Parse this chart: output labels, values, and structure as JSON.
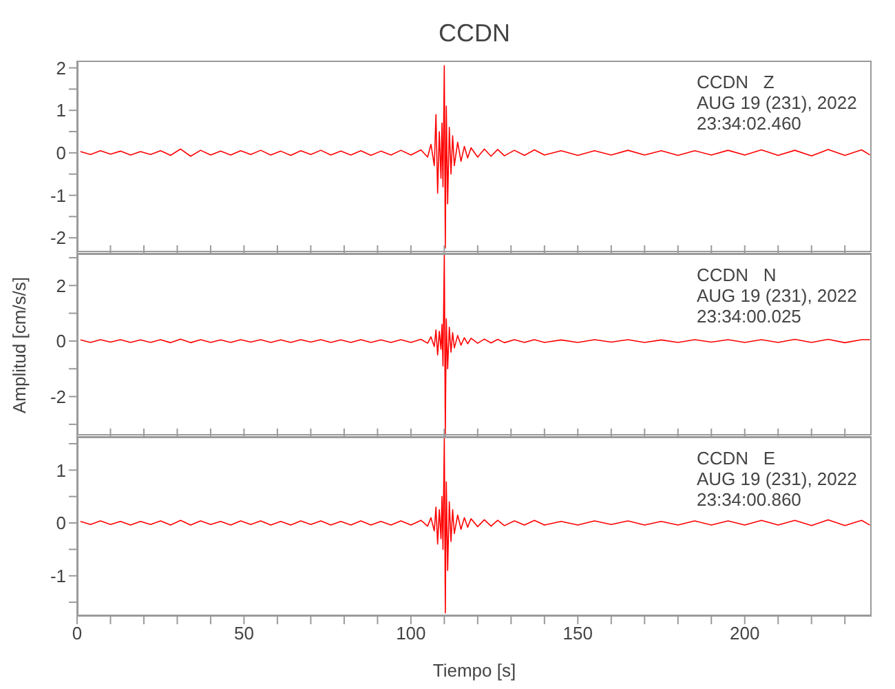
{
  "chart_data": [
    {
      "type": "line",
      "title": "CCDN",
      "annotations": [
        "CCDN   Z",
        "AUG 19 (231), 2022",
        "23:34:02.460"
      ],
      "tick_labels": "y",
      "xlim": [
        0,
        238
      ],
      "xticks": [
        0,
        {
          "value": 10,
          "label": null
        },
        {
          "value": 20,
          "label": null
        },
        {
          "value": 30,
          "label": null
        },
        {
          "value": 40,
          "label": null
        },
        {
          "value": 50,
          "label": null
        },
        {
          "value": 60,
          "label": null
        },
        {
          "value": 70,
          "label": null
        },
        {
          "value": 80,
          "label": null
        },
        {
          "value": 90,
          "label": null
        },
        {
          "value": 100,
          "label": null
        },
        {
          "value": 110,
          "label": null
        },
        {
          "value": 120,
          "label": null
        },
        {
          "value": 130,
          "label": null
        },
        {
          "value": 140,
          "label": null
        },
        {
          "value": 150,
          "label": null
        },
        {
          "value": 160,
          "label": null
        },
        {
          "value": 170,
          "label": null
        },
        {
          "value": 180,
          "label": null
        },
        {
          "value": 190,
          "label": null
        },
        {
          "value": 200,
          "label": null
        },
        {
          "value": 210,
          "label": null
        },
        {
          "value": 220,
          "label": null
        },
        {
          "value": 230,
          "label": null
        }
      ],
      "ylim": [
        -2.37,
        2.17
      ],
      "yticks": [
        -2,
        {
          "value": -1.5,
          "label": null
        },
        -1,
        {
          "value": -0.5,
          "label": null
        },
        0,
        {
          "value": 0.5,
          "label": null
        },
        1,
        {
          "value": 1.5,
          "label": null
        },
        2
      ],
      "x": [
        1,
        4,
        7,
        10,
        13,
        16,
        19,
        22,
        25,
        28,
        31,
        34,
        37,
        40,
        43,
        46,
        49,
        52,
        55,
        58,
        61,
        64,
        67,
        70,
        73,
        76,
        79,
        82,
        85,
        88,
        91,
        94,
        97,
        100,
        103,
        105,
        106,
        107,
        107.5,
        108,
        108.5,
        109,
        109.3,
        109.6,
        110,
        110.3,
        110.6,
        111,
        111.5,
        112,
        112.5,
        113,
        114,
        115,
        116,
        117,
        118,
        120,
        122,
        124,
        126,
        128,
        131,
        134,
        137,
        140,
        145,
        150,
        155,
        160,
        165,
        170,
        175,
        180,
        185,
        190,
        195,
        200,
        205,
        210,
        215,
        220,
        225,
        230,
        235,
        237.5
      ],
      "series": [
        {
          "color": "#ff0000",
          "values": [
            0.03,
            -0.04,
            0.05,
            -0.03,
            0.04,
            -0.05,
            0.03,
            -0.04,
            0.05,
            -0.06,
            0.09,
            -0.08,
            0.06,
            -0.05,
            0.04,
            -0.05,
            0.05,
            -0.04,
            0.06,
            -0.05,
            0.04,
            -0.06,
            0.05,
            -0.04,
            0.06,
            -0.05,
            0.04,
            -0.05,
            0.05,
            -0.06,
            0.04,
            -0.05,
            0.06,
            -0.05,
            0.07,
            -0.1,
            0.2,
            -0.3,
            0.9,
            -0.95,
            0.5,
            -0.6,
            0.7,
            -0.8,
            2.05,
            -2.24,
            1.1,
            -1.2,
            0.6,
            -0.5,
            0.4,
            -0.3,
            0.25,
            -0.2,
            0.15,
            -0.12,
            0.12,
            -0.1,
            0.09,
            -0.08,
            0.08,
            -0.07,
            0.06,
            -0.06,
            0.07,
            -0.05,
            0.05,
            -0.06,
            0.05,
            -0.05,
            0.06,
            -0.05,
            0.05,
            -0.06,
            0.05,
            -0.05,
            0.06,
            -0.05,
            0.07,
            -0.06,
            0.06,
            -0.07,
            0.08,
            -0.06,
            0.07,
            -0.05
          ]
        }
      ]
    },
    {
      "type": "line",
      "ylabel": "Amplitud [cm/s/s]",
      "annotations": [
        "CCDN   N",
        "AUG 19 (231), 2022",
        "23:34:00.025"
      ],
      "tick_labels": "y",
      "xlim": [
        0,
        238
      ],
      "xticks": [
        0,
        {
          "value": 10,
          "label": null
        },
        {
          "value": 20,
          "label": null
        },
        {
          "value": 30,
          "label": null
        },
        {
          "value": 40,
          "label": null
        },
        {
          "value": 50,
          "label": null
        },
        {
          "value": 60,
          "label": null
        },
        {
          "value": 70,
          "label": null
        },
        {
          "value": 80,
          "label": null
        },
        {
          "value": 90,
          "label": null
        },
        {
          "value": 100,
          "label": null
        },
        {
          "value": 110,
          "label": null
        },
        {
          "value": 120,
          "label": null
        },
        {
          "value": 130,
          "label": null
        },
        {
          "value": 140,
          "label": null
        },
        {
          "value": 150,
          "label": null
        },
        {
          "value": 160,
          "label": null
        },
        {
          "value": 170,
          "label": null
        },
        {
          "value": 180,
          "label": null
        },
        {
          "value": 190,
          "label": null
        },
        {
          "value": 200,
          "label": null
        },
        {
          "value": 210,
          "label": null
        },
        {
          "value": 220,
          "label": null
        },
        {
          "value": 230,
          "label": null
        }
      ],
      "ylim": [
        -3.45,
        3.15
      ],
      "yticks": [
        {
          "value": -3,
          "label": null
        },
        -2,
        {
          "value": -1,
          "label": null
        },
        0,
        {
          "value": 1,
          "label": null
        },
        2,
        {
          "value": 3,
          "label": null
        }
      ],
      "x": [
        1,
        4,
        7,
        10,
        13,
        16,
        19,
        22,
        25,
        28,
        31,
        34,
        37,
        40,
        43,
        46,
        49,
        52,
        55,
        58,
        61,
        64,
        67,
        70,
        73,
        76,
        79,
        82,
        85,
        88,
        91,
        94,
        97,
        100,
        103,
        105,
        106,
        107,
        107.5,
        108,
        108.5,
        109,
        109.3,
        109.6,
        110,
        110.3,
        110.6,
        111,
        111.5,
        112,
        112.5,
        113,
        114,
        115,
        116,
        117,
        118,
        120,
        122,
        124,
        126,
        128,
        131,
        134,
        137,
        140,
        145,
        150,
        155,
        160,
        165,
        170,
        175,
        180,
        185,
        190,
        195,
        200,
        205,
        210,
        215,
        220,
        225,
        230,
        235,
        237.5
      ],
      "series": [
        {
          "color": "#ff0000",
          "values": [
            0.04,
            -0.05,
            0.05,
            -0.04,
            0.05,
            -0.05,
            0.04,
            -0.05,
            0.05,
            -0.06,
            0.07,
            -0.06,
            0.05,
            -0.05,
            0.04,
            -0.05,
            0.05,
            -0.04,
            0.05,
            -0.05,
            0.04,
            -0.05,
            0.05,
            -0.04,
            0.05,
            -0.05,
            0.04,
            -0.05,
            0.05,
            -0.05,
            0.04,
            -0.05,
            0.05,
            -0.05,
            0.06,
            -0.08,
            0.15,
            -0.2,
            0.4,
            -0.5,
            0.35,
            -0.3,
            0.6,
            -0.9,
            3.1,
            -3.4,
            0.8,
            -1.0,
            0.5,
            -0.4,
            0.3,
            -0.25,
            0.2,
            -0.15,
            0.12,
            -0.1,
            0.1,
            -0.08,
            0.07,
            -0.07,
            0.06,
            -0.06,
            0.05,
            -0.05,
            0.05,
            -0.05,
            0.04,
            -0.05,
            0.05,
            -0.04,
            0.05,
            -0.05,
            0.04,
            -0.05,
            0.05,
            -0.04,
            0.05,
            -0.05,
            0.05,
            -0.05,
            0.06,
            -0.05,
            0.06,
            -0.06,
            0.05,
            0.05
          ]
        }
      ]
    },
    {
      "type": "line",
      "xlabel": "Tiempo [s]",
      "annotations": [
        "CCDN   E",
        "AUG 19 (231), 2022",
        "23:34:00.860"
      ],
      "xlim": [
        0,
        238
      ],
      "xticks": [
        0,
        {
          "value": 10,
          "label": null
        },
        {
          "value": 20,
          "label": null
        },
        {
          "value": 30,
          "label": null
        },
        {
          "value": 40,
          "label": null
        },
        50,
        {
          "value": 60,
          "label": null
        },
        {
          "value": 70,
          "label": null
        },
        {
          "value": 80,
          "label": null
        },
        {
          "value": 90,
          "label": null
        },
        100,
        {
          "value": 110,
          "label": null
        },
        {
          "value": 120,
          "label": null
        },
        {
          "value": 130,
          "label": null
        },
        {
          "value": 140,
          "label": null
        },
        150,
        {
          "value": 160,
          "label": null
        },
        {
          "value": 170,
          "label": null
        },
        {
          "value": 180,
          "label": null
        },
        {
          "value": 190,
          "label": null
        },
        200,
        {
          "value": 210,
          "label": null
        },
        {
          "value": 220,
          "label": null
        },
        {
          "value": 230,
          "label": null
        }
      ],
      "ylim": [
        -1.76,
        1.63
      ],
      "yticks": [
        {
          "value": -1.5,
          "label": null
        },
        -1,
        {
          "value": -0.5,
          "label": null
        },
        0,
        {
          "value": 0.5,
          "label": null
        },
        1,
        {
          "value": 1.5,
          "label": null
        }
      ],
      "x": [
        1,
        4,
        7,
        10,
        13,
        16,
        19,
        22,
        25,
        28,
        31,
        34,
        37,
        40,
        43,
        46,
        49,
        52,
        55,
        58,
        61,
        64,
        67,
        70,
        73,
        76,
        79,
        82,
        85,
        88,
        91,
        94,
        97,
        100,
        103,
        105,
        106,
        107,
        107.5,
        108,
        108.5,
        109,
        109.3,
        109.6,
        110,
        110.3,
        110.6,
        111,
        111.5,
        112,
        112.5,
        113,
        114,
        115,
        116,
        117,
        118,
        120,
        122,
        124,
        126,
        128,
        131,
        134,
        137,
        140,
        145,
        150,
        155,
        160,
        165,
        170,
        175,
        180,
        185,
        190,
        195,
        200,
        205,
        210,
        215,
        220,
        225,
        230,
        235,
        237.5
      ],
      "series": [
        {
          "color": "#ff0000",
          "values": [
            0.03,
            -0.03,
            0.04,
            -0.03,
            0.03,
            -0.04,
            0.03,
            -0.03,
            0.04,
            -0.04,
            0.05,
            -0.04,
            0.04,
            -0.03,
            0.03,
            -0.04,
            0.04,
            -0.03,
            0.04,
            -0.04,
            0.03,
            -0.04,
            0.04,
            -0.03,
            0.04,
            -0.04,
            0.03,
            -0.04,
            0.04,
            -0.04,
            0.03,
            -0.04,
            0.04,
            -0.04,
            0.05,
            -0.06,
            0.1,
            -0.15,
            0.3,
            -0.4,
            0.25,
            -0.3,
            0.5,
            -0.5,
            1.6,
            -1.7,
            0.78,
            -0.9,
            0.4,
            -0.35,
            0.25,
            -0.2,
            0.15,
            -0.12,
            0.1,
            -0.08,
            0.08,
            -0.07,
            0.06,
            -0.06,
            0.05,
            -0.05,
            0.04,
            -0.04,
            0.05,
            -0.04,
            0.03,
            -0.04,
            0.04,
            -0.03,
            0.04,
            -0.04,
            0.03,
            -0.04,
            0.04,
            -0.04,
            0.04,
            -0.04,
            0.05,
            -0.04,
            0.05,
            -0.05,
            0.06,
            -0.05,
            0.05,
            -0.04
          ]
        }
      ]
    }
  ]
}
